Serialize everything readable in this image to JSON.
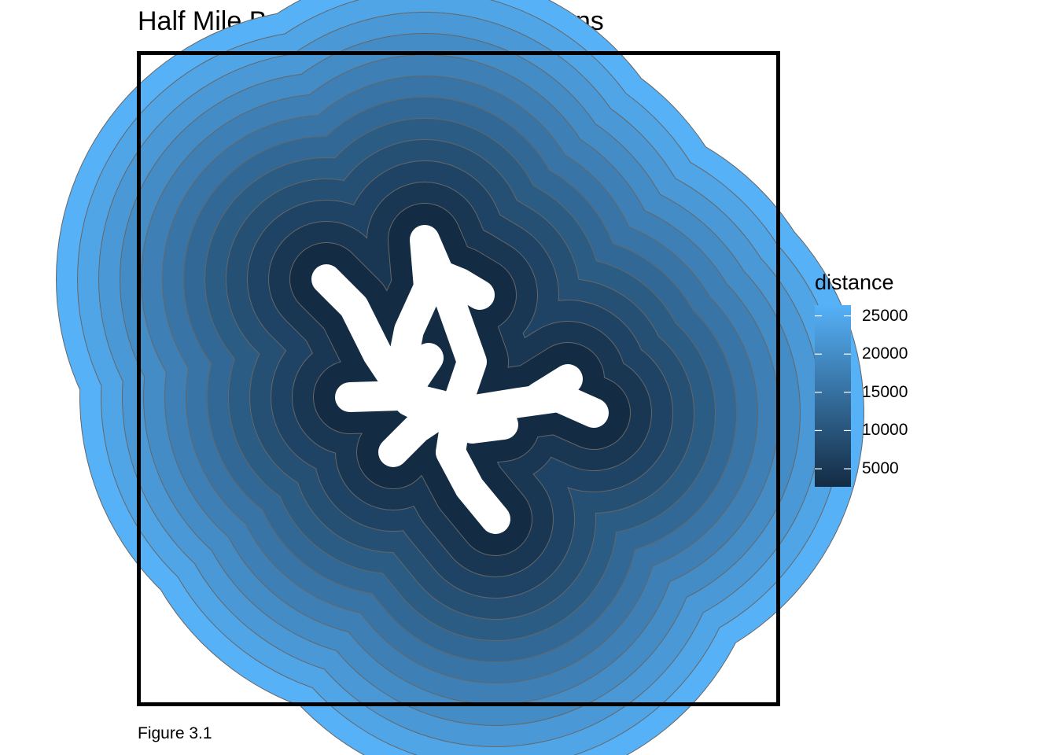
{
  "title": "Half Mile Buffers around Metro Stations",
  "caption": "Figure 3.1",
  "map": {
    "type": "choropleth-buffer-rings",
    "fill_variable": "distance",
    "ring_count": 12,
    "ring_border_color": "#666666",
    "frame_color": "#000000",
    "station_core_color": "#ffffff"
  },
  "legend": {
    "title": "distance",
    "min": 2640,
    "max": 26400,
    "low_color": "#132B43",
    "high_color": "#56B1F7",
    "ticks": [
      {
        "value": 25000,
        "label": "25000"
      },
      {
        "value": 20000,
        "label": "20000"
      },
      {
        "value": 15000,
        "label": "15000"
      },
      {
        "value": 10000,
        "label": "10000"
      },
      {
        "value": 5000,
        "label": "5000"
      }
    ]
  }
}
